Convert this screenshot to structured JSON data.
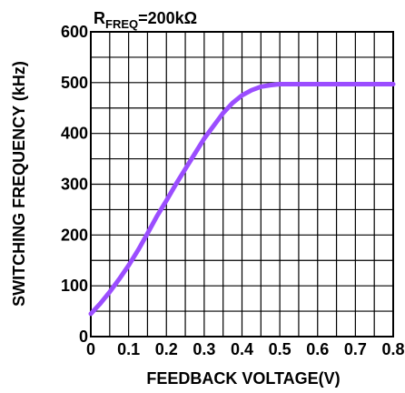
{
  "chart_data": {
    "type": "line",
    "title": "",
    "xlabel": "FEEDBACK VOLTAGE(V)",
    "ylabel": "SWITCHING FREQUENCY (kHz)",
    "xlim": [
      0,
      0.8
    ],
    "ylim": [
      0,
      600
    ],
    "grid": true,
    "x_ticks": [
      "0",
      "0.1",
      "0.2",
      "0.3",
      "0.4",
      "0.5",
      "0.6",
      "0.7",
      "0.8"
    ],
    "y_ticks": [
      "0",
      "100",
      "200",
      "300",
      "400",
      "500",
      "600"
    ],
    "annotation": {
      "main": "R",
      "sub": "FREQ",
      "rest": "=200kΩ"
    },
    "line_color": "#9b4dff",
    "series": [
      {
        "x": [
          0.0,
          0.025,
          0.05,
          0.075,
          0.1,
          0.125,
          0.15,
          0.175,
          0.2,
          0.225,
          0.25,
          0.275,
          0.3,
          0.325,
          0.35,
          0.375,
          0.4,
          0.425,
          0.45,
          0.475,
          0.5,
          0.55,
          0.6,
          0.7,
          0.8
        ],
        "y": [
          45,
          65,
          88,
          113,
          140,
          170,
          203,
          237,
          268,
          300,
          330,
          360,
          390,
          415,
          440,
          460,
          475,
          485,
          492,
          495,
          497,
          497,
          497,
          497,
          497
        ]
      }
    ]
  }
}
